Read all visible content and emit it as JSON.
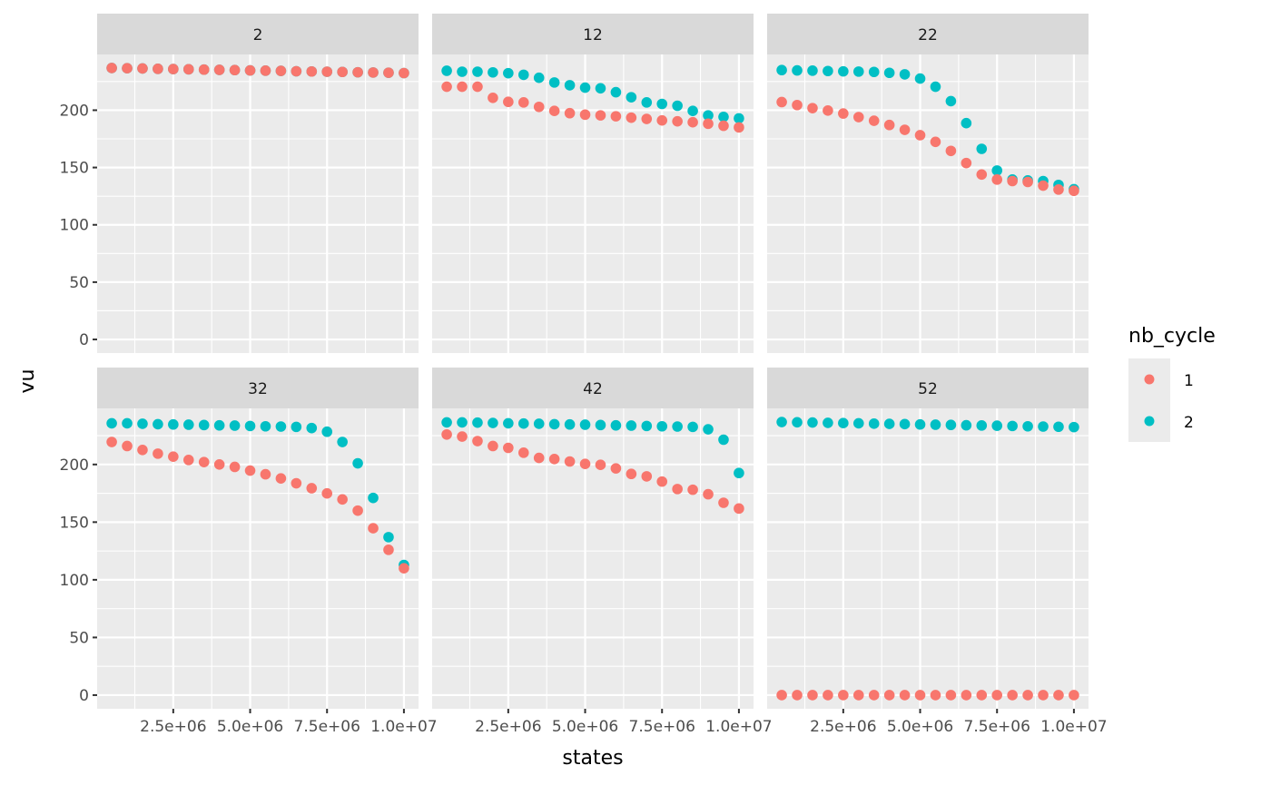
{
  "chart_data": {
    "type": "scatter",
    "facet_by": "facet",
    "xlabel": "states",
    "ylabel": "vu",
    "xlim": [
      25000,
      10475000
    ],
    "ylim": [
      -11.84,
      248.64
    ],
    "x_ticks": [
      2500000,
      5000000,
      7500000,
      10000000
    ],
    "x_tick_labels": [
      "2.5e+06",
      "5.0e+06",
      "7.5e+06",
      "1.0e+07"
    ],
    "y_ticks": [
      0,
      50,
      100,
      150,
      200
    ],
    "y_tick_labels": [
      "0",
      "50",
      "100",
      "150",
      "200"
    ],
    "grid": true,
    "legend": {
      "title": "nb_cycle",
      "position": "right",
      "entries": [
        {
          "label": "1",
          "color": "#F8766D"
        },
        {
          "label": "2",
          "color": "#00BFC4"
        }
      ]
    },
    "x": [
      500000,
      1000000,
      1500000,
      2000000,
      2500000,
      3000000,
      3500000,
      4000000,
      4500000,
      5000000,
      5500000,
      6000000,
      6500000,
      7000000,
      7500000,
      8000000,
      8500000,
      9000000,
      9500000,
      10000000
    ],
    "facets": [
      {
        "label": "2",
        "series": [
          {
            "name": "1",
            "values": [
              236.8,
              236.6,
              236.4,
              236.1,
              235.9,
              235.7,
              235.4,
              235.2,
              235.0,
              234.7,
              234.5,
              234.3,
              234.0,
              233.8,
              233.6,
              233.4,
              233.1,
              232.9,
              232.7,
              232.4
            ]
          },
          {
            "name": "2",
            "values": [
              236.8,
              236.6,
              236.4,
              236.1,
              235.9,
              235.7,
              235.4,
              235.2,
              235.0,
              234.7,
              234.5,
              234.3,
              234.0,
              233.8,
              233.6,
              233.4,
              233.1,
              232.9,
              232.7,
              232.4
            ]
          }
        ]
      },
      {
        "label": "12",
        "series": [
          {
            "name": "1",
            "values": [
              220.5,
              220.5,
              220.5,
              210.8,
              207.3,
              206.8,
              202.9,
              199.4,
              197.4,
              196.1,
              195.5,
              194.7,
              193.5,
              192.4,
              191.1,
              190.3,
              189.5,
              188.2,
              186.4,
              185.0
            ]
          },
          {
            "name": "2",
            "values": [
              234.4,
              233.6,
              233.6,
              233.0,
              232.3,
              230.9,
              228.3,
              224.2,
              221.8,
              219.7,
              219.1,
              215.7,
              211.3,
              206.8,
              205.5,
              203.9,
              199.4,
              195.5,
              194.2,
              192.9
            ]
          }
        ]
      },
      {
        "label": "22",
        "series": [
          {
            "name": "1",
            "values": [
              207.1,
              204.5,
              201.8,
              199.7,
              197.1,
              194.0,
              190.8,
              187.1,
              182.9,
              178.2,
              172.4,
              164.5,
              153.9,
              143.9,
              139.5,
              138.2,
              137.4,
              134.2,
              130.8,
              129.7
            ]
          },
          {
            "name": "2",
            "values": [
              235.0,
              234.7,
              234.5,
              234.2,
              233.9,
              233.7,
              233.4,
              232.6,
              231.3,
              227.6,
              220.5,
              207.9,
              188.7,
              166.3,
              147.4,
              139.5,
              138.7,
              138.2,
              134.8,
              131.1
            ]
          }
        ]
      },
      {
        "label": "32",
        "series": [
          {
            "name": "1",
            "values": [
              219.5,
              216.0,
              212.6,
              209.4,
              206.8,
              203.9,
              202.1,
              200.0,
              197.9,
              194.7,
              191.5,
              187.9,
              183.7,
              179.4,
              174.9,
              169.7,
              160.0,
              144.7,
              126.0,
              110.0
            ]
          },
          {
            "name": "2",
            "values": [
              235.7,
              235.7,
              235.3,
              234.9,
              234.7,
              234.5,
              234.2,
              233.9,
              233.7,
              233.4,
              233.1,
              232.9,
              232.6,
              231.6,
              228.4,
              219.5,
              201.0,
              171.0,
              137.0,
              112.9
            ]
          }
        ]
      },
      {
        "label": "42",
        "series": [
          {
            "name": "1",
            "values": [
              226.0,
              224.2,
              220.3,
              216.0,
              214.4,
              210.2,
              205.7,
              204.7,
              202.6,
              200.5,
              199.7,
              196.6,
              191.8,
              189.7,
              185.2,
              178.7,
              178.1,
              174.2,
              166.8,
              161.8
            ]
          },
          {
            "name": "2",
            "values": [
              236.5,
              236.5,
              236.3,
              236.0,
              235.7,
              235.5,
              235.3,
              234.9,
              234.7,
              234.5,
              234.2,
              233.9,
              233.7,
              233.4,
              233.1,
              232.9,
              232.6,
              230.5,
              221.5,
              192.6
            ]
          }
        ]
      },
      {
        "label": "52",
        "series": [
          {
            "name": "1",
            "values": [
              0,
              0,
              0,
              0,
              0,
              0,
              0,
              0,
              0,
              0,
              0,
              0,
              0,
              0,
              0,
              0,
              0,
              0,
              0,
              0
            ]
          },
          {
            "name": "2",
            "values": [
              236.8,
              236.6,
              236.4,
              236.1,
              235.9,
              235.7,
              235.4,
              235.2,
              235.0,
              234.7,
              234.5,
              234.3,
              234.0,
              233.8,
              233.6,
              233.4,
              233.1,
              232.9,
              232.7,
              232.4
            ]
          }
        ]
      }
    ]
  }
}
